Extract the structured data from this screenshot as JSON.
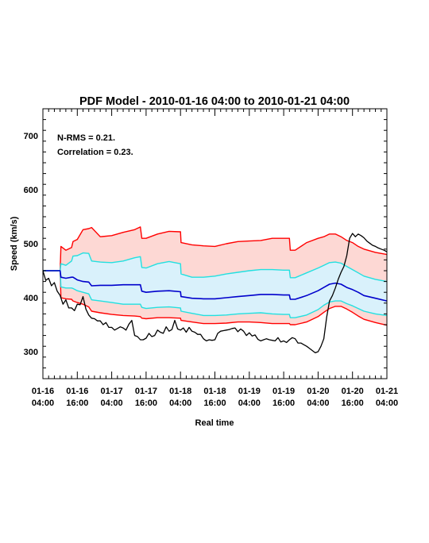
{
  "chart_data": {
    "type": "line",
    "title": "PDF Model - 2010-01-16 04:00 to 2010-01-21 04:00",
    "xlabel": "Real time",
    "ylabel": "Speed (km/s)",
    "xlim": [
      0,
      120
    ],
    "ylim": [
      250,
      750
    ],
    "yticks": [
      300,
      400,
      500,
      600,
      700
    ],
    "xticks": [
      {
        "x": 0,
        "line1": "01-16",
        "line2": "04:00"
      },
      {
        "x": 12,
        "line1": "01-16",
        "line2": "16:00"
      },
      {
        "x": 24,
        "line1": "01-17",
        "line2": "04:00"
      },
      {
        "x": 36,
        "line1": "01-17",
        "line2": "16:00"
      },
      {
        "x": 48,
        "line1": "01-18",
        "line2": "04:00"
      },
      {
        "x": 60,
        "line1": "01-18",
        "line2": "16:00"
      },
      {
        "x": 72,
        "line1": "01-19",
        "line2": "04:00"
      },
      {
        "x": 84,
        "line1": "01-19",
        "line2": "16:00"
      },
      {
        "x": 96,
        "line1": "01-20",
        "line2": "04:00"
      },
      {
        "x": 108,
        "line1": "01-20",
        "line2": "16:00"
      },
      {
        "x": 120,
        "line1": "01-21",
        "line2": "04:00"
      }
    ],
    "annotations": [
      "N-RMS = 0.21.",
      "Correlation = 0.23."
    ],
    "x_unit": "hours from 2010-01-16 04:00",
    "colors": {
      "outer_band_fill": "#fdd8d4",
      "inner_band_fill": "#d9f1fb",
      "outer_line": "#ff0000",
      "inner_line": "#22e0e0",
      "median_line": "#0000cc",
      "observed_line": "#000000"
    },
    "series": [
      {
        "role": "upper_outer",
        "x": [
          0,
          6,
          6.3,
          8,
          10,
          10.5,
          12,
          14,
          16,
          17,
          20,
          24,
          28,
          32,
          34,
          34.5,
          36,
          40,
          44,
          48,
          48.2,
          52,
          56,
          60,
          64,
          68,
          72,
          76,
          80,
          84,
          86,
          86.3,
          88,
          92,
          96,
          98,
          100,
          102,
          104,
          106,
          108,
          110,
          112,
          116,
          120
        ],
        "y": [
          450,
          450,
          495,
          488,
          493,
          504,
          508,
          526,
          528,
          530,
          513,
          515,
          521,
          526,
          531,
          510,
          510,
          518,
          523,
          522,
          502,
          498,
          496,
          495,
          500,
          504,
          505,
          506,
          510,
          510,
          510,
          488,
          488,
          502,
          510,
          513,
          518,
          518,
          513,
          506,
          502,
          495,
          490,
          484,
          480
        ]
      },
      {
        "role": "upper_inner",
        "x": [
          0,
          6,
          6.3,
          8,
          10,
          10.5,
          12,
          14,
          16,
          17,
          20,
          24,
          28,
          32,
          34,
          34.5,
          36,
          40,
          44,
          48,
          48.2,
          52,
          56,
          60,
          64,
          68,
          72,
          76,
          80,
          84,
          86,
          86.3,
          88,
          92,
          96,
          98,
          100,
          102,
          104,
          106,
          108,
          110,
          112,
          116,
          120
        ],
        "y": [
          450,
          450,
          463,
          460,
          468,
          477,
          478,
          483,
          482,
          468,
          466,
          465,
          468,
          474,
          476,
          456,
          455,
          463,
          467,
          463,
          444,
          438,
          438,
          440,
          444,
          447,
          450,
          452,
          452,
          451,
          451,
          437,
          437,
          446,
          455,
          460,
          465,
          466,
          464,
          458,
          452,
          446,
          440,
          434,
          430
        ]
      },
      {
        "role": "median",
        "x": [
          0,
          6,
          6.3,
          8,
          10,
          10.5,
          12,
          14,
          16,
          17,
          20,
          24,
          28,
          32,
          34,
          34.5,
          36,
          40,
          44,
          48,
          48.2,
          52,
          56,
          60,
          64,
          68,
          72,
          76,
          80,
          84,
          86,
          86.3,
          88,
          92,
          96,
          98,
          100,
          102,
          104,
          106,
          108,
          110,
          112,
          116,
          120
        ],
        "y": [
          450,
          450,
          438,
          436,
          438,
          438,
          433,
          430,
          429,
          422,
          423,
          423,
          424,
          424,
          424,
          412,
          410,
          412,
          413,
          411,
          402,
          399,
          398,
          398,
          400,
          402,
          404,
          406,
          406,
          405,
          405,
          397,
          397,
          404,
          413,
          419,
          425,
          427,
          425,
          419,
          415,
          410,
          404,
          399,
          394
        ]
      },
      {
        "role": "lower_inner",
        "x": [
          0,
          6,
          6.3,
          8,
          10,
          10.5,
          12,
          14,
          16,
          17,
          20,
          24,
          28,
          32,
          34,
          34.5,
          36,
          40,
          44,
          48,
          48.2,
          52,
          56,
          60,
          64,
          68,
          72,
          76,
          80,
          84,
          86,
          86.3,
          88,
          92,
          96,
          98,
          100,
          102,
          104,
          106,
          108,
          110,
          112,
          116,
          120
        ],
        "y": [
          450,
          450,
          420,
          418,
          418,
          417,
          413,
          410,
          407,
          396,
          394,
          391,
          388,
          388,
          388,
          382,
          380,
          382,
          383,
          381,
          375,
          371,
          367,
          367,
          368,
          370,
          371,
          372,
          370,
          369,
          369,
          363,
          363,
          368,
          378,
          386,
          392,
          394,
          394,
          389,
          385,
          380,
          375,
          370,
          367
        ]
      },
      {
        "role": "lower_outer",
        "x": [
          0,
          6,
          6.3,
          8,
          10,
          10.5,
          12,
          14,
          16,
          17,
          20,
          24,
          28,
          32,
          34,
          34.5,
          36,
          40,
          44,
          48,
          48.2,
          52,
          56,
          60,
          64,
          68,
          72,
          76,
          80,
          84,
          86,
          86.3,
          88,
          92,
          96,
          98,
          100,
          102,
          104,
          106,
          108,
          110,
          112,
          116,
          120
        ],
        "y": [
          450,
          450,
          400,
          398,
          397,
          394,
          391,
          388,
          383,
          375,
          372,
          369,
          367,
          366,
          365,
          362,
          361,
          363,
          363,
          362,
          358,
          355,
          352,
          352,
          353,
          355,
          355,
          354,
          352,
          352,
          352,
          350,
          350,
          355,
          365,
          373,
          380,
          384,
          384,
          379,
          373,
          366,
          360,
          354,
          349
        ]
      },
      {
        "role": "observed",
        "x": [
          0,
          1,
          2,
          3,
          4,
          5,
          6,
          7,
          8,
          9,
          10,
          11,
          12,
          13,
          14,
          15,
          16,
          17,
          18,
          19,
          20,
          21,
          22,
          23,
          24,
          25,
          26,
          27,
          28,
          29,
          30,
          31,
          32,
          33,
          34,
          35,
          36,
          37,
          38,
          39,
          40,
          41,
          42,
          43,
          44,
          45,
          46,
          47,
          48,
          49,
          50,
          51,
          52,
          53,
          54,
          55,
          56,
          57,
          58,
          59,
          60,
          61,
          62,
          63,
          64,
          65,
          66,
          67,
          68,
          69,
          70,
          71,
          72,
          73,
          74,
          75,
          76,
          77,
          78,
          79,
          80,
          81,
          82,
          83,
          84,
          85,
          86,
          87,
          88,
          89,
          90,
          91,
          92,
          93,
          94,
          95,
          96,
          97,
          98,
          99,
          100,
          101,
          102,
          103,
          104,
          105,
          106,
          107,
          108,
          109,
          110,
          111,
          112,
          113,
          114,
          115,
          116,
          117,
          118,
          119,
          120
        ],
        "y": [
          450,
          432,
          436,
          422,
          428,
          412,
          404,
          388,
          396,
          381,
          381,
          376,
          388,
          387,
          402,
          379,
          368,
          362,
          361,
          357,
          357,
          350,
          354,
          345,
          345,
          340,
          343,
          346,
          344,
          340,
          351,
          358,
          330,
          328,
          322,
          322,
          325,
          334,
          328,
          330,
          340,
          336,
          334,
          346,
          338,
          341,
          358,
          342,
          340,
          344,
          336,
          345,
          338,
          336,
          332,
          332,
          324,
          320,
          322,
          321,
          322,
          334,
          338,
          339,
          340,
          341,
          343,
          344,
          337,
          342,
          338,
          330,
          335,
          329,
          331,
          323,
          320,
          322,
          324,
          322,
          321,
          320,
          326,
          318,
          320,
          317,
          322,
          326,
          324,
          316,
          316,
          313,
          310,
          306,
          302,
          298,
          300,
          310,
          324,
          364,
          394,
          404,
          418,
          434,
          447,
          458,
          478,
          510,
          519,
          513,
          518,
          515,
          511,
          505,
          501,
          497,
          495,
          492,
          490,
          488,
          485
        ]
      }
    ]
  }
}
